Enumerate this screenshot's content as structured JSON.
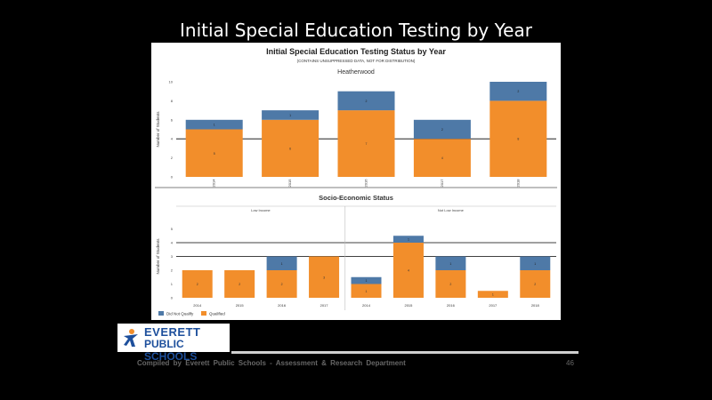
{
  "slide": {
    "title": "Initial Special Education Testing by Year",
    "footer": "Compiled by Everett Public Schools - Assessment & Research Department",
    "page_number": "46",
    "logo": {
      "line1": "EVERETT",
      "line2": "PUBLIC SCHOOLS"
    }
  },
  "colors": {
    "not_qualified": "#4e79a7",
    "qualified": "#f28e2b",
    "ref_line": "#000000"
  },
  "chart_data": [
    {
      "type": "bar",
      "stacked": true,
      "title": "Initial Special Education Testing Status by Year",
      "subtitle": "(CONTAINS UNSUPPRESSED DATA, NOT FOR DISTRIBUTION)",
      "section": "Heatherwood",
      "ylabel": "Number of Students",
      "ylim": [
        0,
        10
      ],
      "yticks": [
        0,
        2,
        4,
        6,
        8,
        10
      ],
      "reference_line": 4,
      "categories": [
        "2014",
        "2015",
        "2016",
        "2017",
        "2018"
      ],
      "series": [
        {
          "name": "Qualified",
          "values": [
            5,
            6,
            7,
            4,
            8
          ],
          "labels": [
            "5",
            "6",
            "7",
            "4",
            "8"
          ]
        },
        {
          "name": "Did Not Qualify",
          "values": [
            1,
            1,
            2,
            2,
            2
          ],
          "labels": [
            "1",
            "1",
            "2",
            "2",
            "2"
          ]
        }
      ]
    },
    {
      "type": "bar",
      "stacked": true,
      "section": "Socio-Economic Status",
      "ylabel": "Number of Students",
      "ylim": [
        0,
        6
      ],
      "yticks": [
        0,
        1,
        2,
        3,
        4,
        5
      ],
      "reference_lines": [
        3,
        4
      ],
      "panels": [
        {
          "name": "Low Income",
          "categories": [
            "2014",
            "2015",
            "2016",
            "2017"
          ],
          "series": [
            {
              "name": "Qualified",
              "values": [
                2,
                2,
                2,
                3
              ],
              "labels": [
                "2",
                "2",
                "2",
                "3"
              ]
            },
            {
              "name": "Did Not Qualify",
              "values": [
                0,
                0,
                1,
                0
              ],
              "labels": [
                "",
                "",
                "1",
                ""
              ]
            }
          ]
        },
        {
          "name": "Not Low Income",
          "categories": [
            "2014",
            "2015",
            "2016",
            "2017",
            "2018"
          ],
          "series": [
            {
              "name": "Qualified",
              "values": [
                1,
                4,
                2,
                0.5,
                2
              ],
              "labels": [
                "1",
                "4",
                "2",
                "1",
                "2"
              ]
            },
            {
              "name": "Did Not Qualify",
              "values": [
                0.5,
                0.5,
                1,
                0,
                1
              ],
              "labels": [
                "1",
                "1",
                "1",
                "",
                "1"
              ]
            }
          ]
        }
      ],
      "legend": [
        "Did Not Qualify",
        "Qualified"
      ]
    }
  ]
}
